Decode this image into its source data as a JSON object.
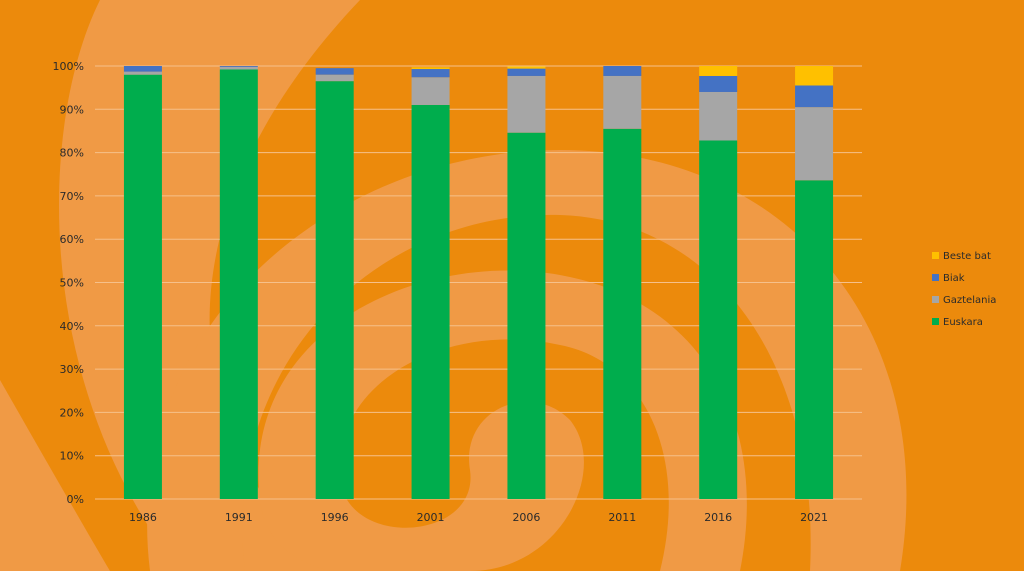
{
  "chart_data": {
    "type": "bar",
    "stacked": true,
    "categories": [
      "1986",
      "1991",
      "1996",
      "2001",
      "2006",
      "2011",
      "2016",
      "2021"
    ],
    "series": [
      {
        "name": "Euskara",
        "color": "#00ad4d",
        "values": [
          98.0,
          99.2,
          96.5,
          91.0,
          84.6,
          85.5,
          82.8,
          73.6
        ]
      },
      {
        "name": "Gaztelania",
        "color": "#a6a6a6",
        "values": [
          0.7,
          0.6,
          1.5,
          6.4,
          13.1,
          12.2,
          11.2,
          16.9
        ]
      },
      {
        "name": "Biak",
        "color": "#4472c4",
        "values": [
          1.3,
          0.2,
          1.5,
          1.9,
          1.7,
          2.3,
          3.7,
          5.0
        ]
      },
      {
        "name": "Beste bat",
        "color": "#ffc000",
        "values": [
          0.0,
          0.0,
          0.0,
          0.4,
          0.5,
          0.0,
          2.3,
          4.5
        ]
      }
    ],
    "yticks": [
      "0%",
      "10%",
      "20%",
      "30%",
      "40%",
      "50%",
      "60%",
      "70%",
      "80%",
      "90%",
      "100%"
    ],
    "ylim": [
      0,
      100
    ],
    "grid": true,
    "legend_position": "right",
    "legend_order": [
      "Beste bat",
      "Biak",
      "Gaztelania",
      "Euskara"
    ],
    "title": "",
    "xlabel": "",
    "ylabel": ""
  },
  "colors": {
    "background": "#ec8a0c",
    "swirl": "#f09a45",
    "gridline": "#f6c08a",
    "text": "#2b2b2b"
  }
}
